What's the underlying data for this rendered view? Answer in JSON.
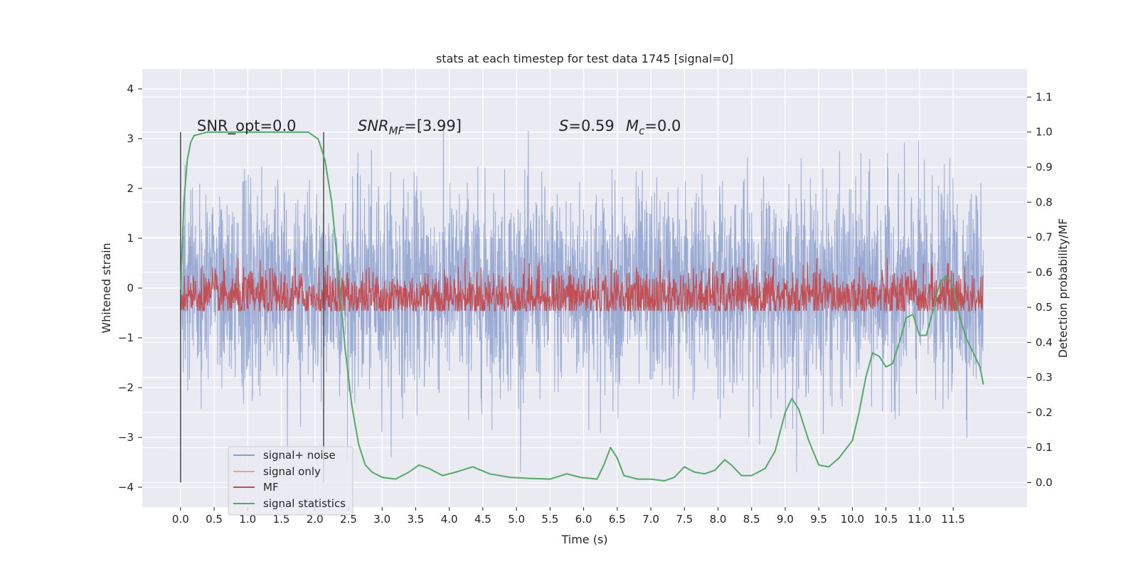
{
  "chart_data": {
    "type": "line",
    "title": "stats at each timestep for test data 1745 [signal=0]",
    "xlabel": "Time (s)",
    "ylabel": "Whitened strain",
    "y2label": "Detection probability/MF",
    "xlim": [
      -0.57,
      12.6
    ],
    "ylim": [
      -4.4,
      4.4
    ],
    "y2lim": [
      -0.07,
      1.18
    ],
    "xticks": [
      "0.0",
      "0.5",
      "1.0",
      "1.5",
      "2.0",
      "2.5",
      "3.0",
      "3.5",
      "4.0",
      "4.5",
      "5.0",
      "5.5",
      "6.0",
      "6.5",
      "7.0",
      "7.5",
      "8.0",
      "8.5",
      "9.0",
      "9.5",
      "10.0",
      "10.5",
      "11.0",
      "11.5"
    ],
    "yticks": [
      "4",
      "3",
      "2",
      "1",
      "0",
      "−1",
      "−2",
      "−3",
      "−4"
    ],
    "y2ticks": [
      "1.1",
      "1.0",
      "0.9",
      "0.8",
      "0.7",
      "0.6",
      "0.5",
      "0.4",
      "0.3",
      "0.2",
      "0.1",
      "0.0"
    ],
    "grid": true,
    "legend_position": "lower-left",
    "annotations": {
      "snr_opt": "SNR_opt=0.0",
      "snr_mf_var": "SNR",
      "snr_mf_sub": "MF",
      "snr_mf_val": "=[3.99]",
      "s_var": "S",
      "s_val": "=0.59",
      "mc_var": "M",
      "mc_sub": "c",
      "mc_val": "=0.0"
    },
    "vlines_x": [
      0.0,
      2.13
    ],
    "series": [
      {
        "name": "signal+ noise",
        "color": "#8c9fcc",
        "axis": "left",
        "noise": {
          "t_start": 0.0,
          "t_end": 11.95,
          "sigma": 1.0
        }
      },
      {
        "name": "signal only",
        "color": "#e8a285",
        "axis": "left",
        "values_note": "flat"
      },
      {
        "name": "MF",
        "color": "#c44e52",
        "axis": "right",
        "noise": {
          "t_start": 0.0,
          "t_end": 11.95,
          "center": 0.53,
          "spread": 0.04
        }
      },
      {
        "name": "signal statistics",
        "color": "#55a868",
        "axis": "right",
        "x": [
          0.0,
          0.05,
          0.1,
          0.15,
          0.2,
          0.4,
          0.8,
          1.2,
          1.6,
          1.9,
          2.05,
          2.15,
          2.25,
          2.35,
          2.45,
          2.55,
          2.65,
          2.75,
          2.85,
          3.0,
          3.2,
          3.4,
          3.55,
          3.7,
          3.9,
          4.1,
          4.35,
          4.6,
          4.9,
          5.2,
          5.5,
          5.75,
          5.95,
          6.2,
          6.3,
          6.4,
          6.5,
          6.6,
          6.8,
          7.0,
          7.2,
          7.35,
          7.5,
          7.65,
          7.8,
          7.95,
          8.1,
          8.2,
          8.35,
          8.5,
          8.7,
          8.85,
          9.0,
          9.1,
          9.2,
          9.35,
          9.5,
          9.65,
          9.8,
          10.0,
          10.1,
          10.2,
          10.3,
          10.4,
          10.5,
          10.6,
          10.7,
          10.8,
          10.9,
          11.0,
          11.1,
          11.2,
          11.3,
          11.4,
          11.5,
          11.6,
          11.7,
          11.8,
          11.9,
          11.95
        ],
        "values": [
          0.55,
          0.8,
          0.92,
          0.97,
          0.99,
          1.0,
          1.0,
          1.0,
          1.0,
          1.0,
          0.98,
          0.92,
          0.8,
          0.6,
          0.38,
          0.22,
          0.11,
          0.05,
          0.03,
          0.015,
          0.01,
          0.03,
          0.05,
          0.04,
          0.02,
          0.03,
          0.045,
          0.025,
          0.015,
          0.012,
          0.01,
          0.025,
          0.015,
          0.01,
          0.05,
          0.1,
          0.07,
          0.02,
          0.01,
          0.01,
          0.005,
          0.015,
          0.045,
          0.03,
          0.025,
          0.035,
          0.065,
          0.05,
          0.02,
          0.02,
          0.04,
          0.09,
          0.2,
          0.24,
          0.21,
          0.12,
          0.05,
          0.045,
          0.07,
          0.12,
          0.2,
          0.3,
          0.37,
          0.36,
          0.33,
          0.34,
          0.4,
          0.47,
          0.48,
          0.42,
          0.42,
          0.49,
          0.57,
          0.59,
          0.56,
          0.47,
          0.41,
          0.37,
          0.33,
          0.28
        ]
      }
    ]
  }
}
